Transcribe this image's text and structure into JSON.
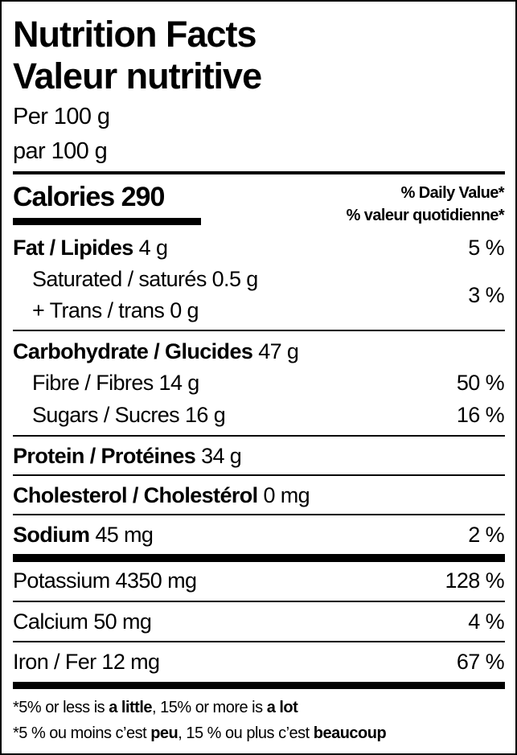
{
  "title_en": "Nutrition Facts",
  "title_fr": "Valeur nutritive",
  "serving_en": "Per 100 g",
  "serving_fr": "par 100 g",
  "calories": {
    "label": "Calories",
    "value": "290"
  },
  "daily_value_en": "% Daily Value*",
  "daily_value_fr": "% valeur quotidienne*",
  "nutrients": {
    "fat": {
      "label": "Fat / Lipides",
      "amount": "4 g",
      "dv": "5 %"
    },
    "saturated": {
      "label": "Saturated / saturés 0.5 g"
    },
    "trans": {
      "label": "+ Trans / trans 0 g",
      "dv": "3 %"
    },
    "carb": {
      "label": "Carbohydrate / Glucides",
      "amount": "47 g"
    },
    "fibre": {
      "label": "Fibre / Fibres 14 g",
      "dv": "50 %"
    },
    "sugars": {
      "label": "Sugars / Sucres 16 g",
      "dv": "16 %"
    },
    "protein": {
      "label": "Protein / Protéines",
      "amount": "34 g"
    },
    "cholesterol": {
      "label": "Cholesterol / Cholestérol",
      "amount": "0 mg"
    },
    "sodium": {
      "label": "Sodium",
      "amount": "45 mg",
      "dv": "2 %"
    },
    "potassium": {
      "label": "Potassium 4350 mg",
      "dv": "128 %"
    },
    "calcium": {
      "label": "Calcium 50 mg",
      "dv": "4 %"
    },
    "iron": {
      "label": "Iron / Fer 12 mg",
      "dv": "67 %"
    }
  },
  "footnote_en": {
    "p1": "*5% or less is ",
    "b1": "a little",
    "p2": ", 15% or more is ",
    "b2": "a lot"
  },
  "footnote_fr": {
    "p1": "*5 % ou moins c’est ",
    "b1": "peu",
    "p2": ", 15 % ou plus c’est ",
    "b2": "beaucoup"
  }
}
